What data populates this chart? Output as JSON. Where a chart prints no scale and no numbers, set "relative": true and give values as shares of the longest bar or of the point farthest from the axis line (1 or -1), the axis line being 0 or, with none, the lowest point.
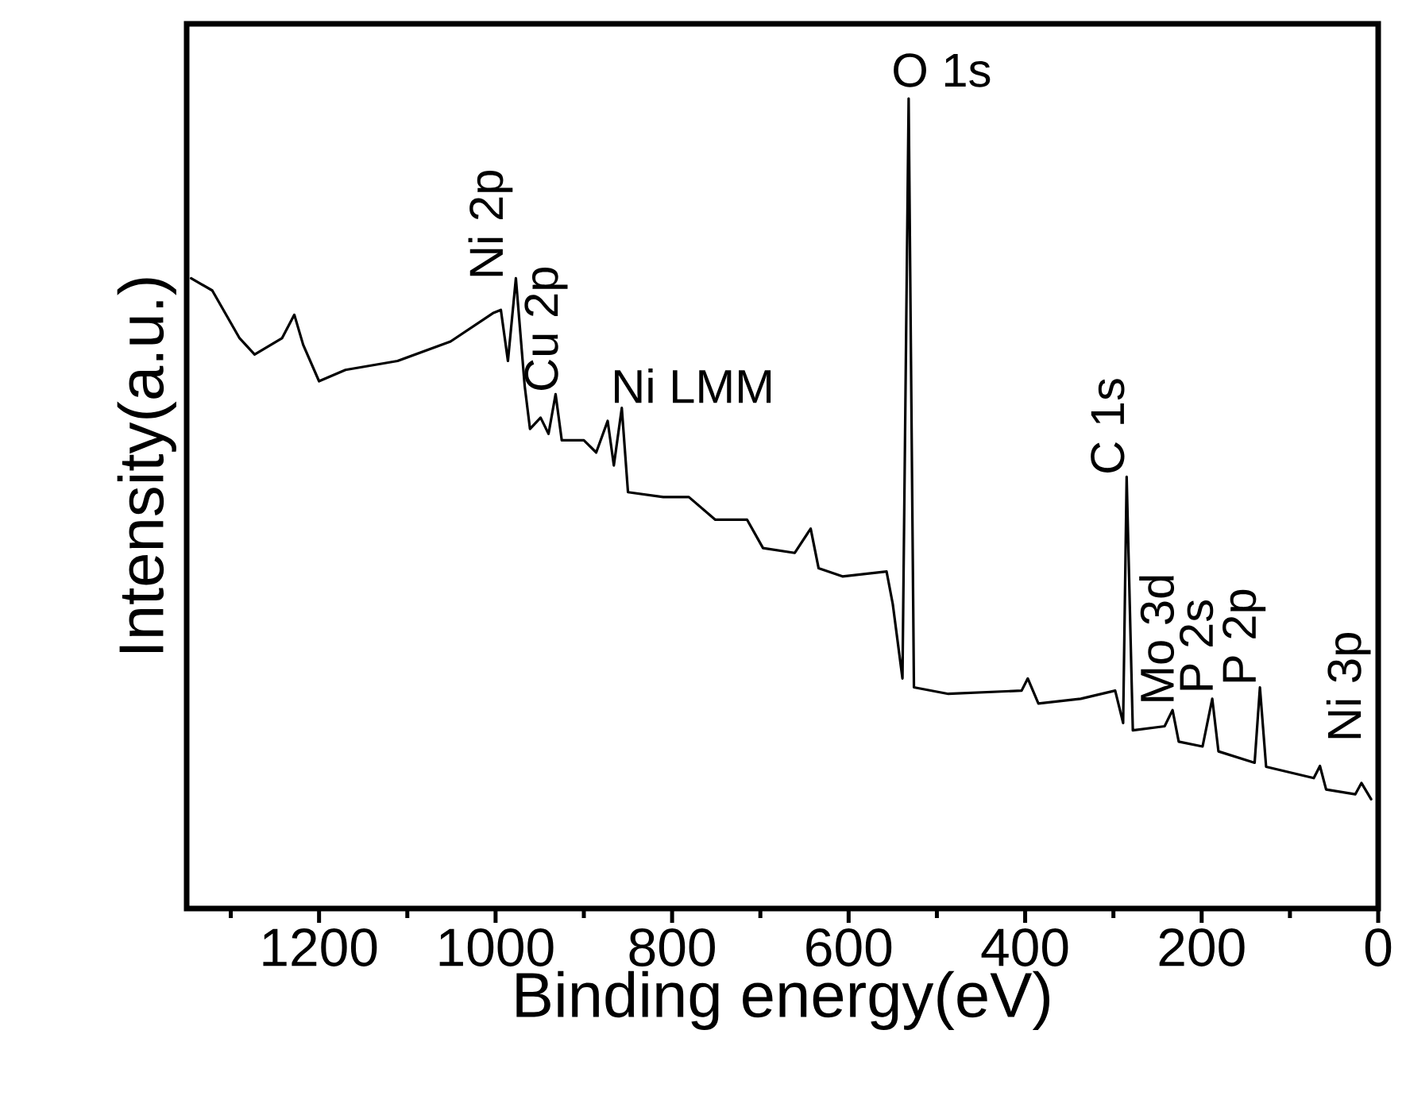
{
  "chart_data": {
    "type": "line",
    "relative": true,
    "xlabel": "Binding energy(eV)",
    "ylabel": "Intensity(a.u.)",
    "xlim": [
      1350,
      0
    ],
    "xticks": [
      {
        "value": 1300,
        "label": null
      },
      1200,
      {
        "value": 1100,
        "label": null
      },
      1000,
      {
        "value": 900,
        "label": null
      },
      800,
      {
        "value": 700,
        "label": null
      },
      600,
      {
        "value": 500,
        "label": null
      },
      400,
      {
        "value": 300,
        "label": null
      },
      200,
      {
        "value": 100,
        "label": null
      },
      0
    ],
    "x": [
      1345,
      1321,
      1290,
      1273,
      1242,
      1228,
      1218,
      1200,
      1170,
      1111,
      1051,
      1003,
      994,
      986,
      977,
      967,
      961,
      949,
      940,
      932,
      925,
      900,
      886,
      873,
      866,
      857,
      850,
      810,
      781,
      751,
      715,
      697,
      661,
      643,
      634,
      607,
      557,
      550,
      539,
      532,
      526,
      487,
      404,
      397,
      385,
      337,
      298,
      289,
      285,
      278,
      242,
      233,
      226,
      199,
      188,
      181,
      140,
      134,
      127,
      73,
      66,
      59,
      26,
      19,
      8
    ],
    "series": [
      {
        "color": "#000000",
        "values": [
          0.778,
          0.763,
          0.704,
          0.684,
          0.704,
          0.733,
          0.696,
          0.651,
          0.665,
          0.676,
          0.7,
          0.735,
          0.739,
          0.676,
          0.778,
          0.645,
          0.592,
          0.606,
          0.586,
          0.635,
          0.578,
          0.578,
          0.563,
          0.602,
          0.547,
          0.618,
          0.514,
          0.508,
          0.508,
          0.48,
          0.48,
          0.445,
          0.439,
          0.469,
          0.42,
          0.41,
          0.416,
          0.376,
          0.284,
          1.0,
          0.273,
          0.265,
          0.269,
          0.284,
          0.253,
          0.259,
          0.269,
          0.229,
          0.533,
          0.22,
          0.225,
          0.245,
          0.206,
          0.2,
          0.259,
          0.194,
          0.18,
          0.273,
          0.175,
          0.161,
          0.176,
          0.147,
          0.141,
          0.155,
          0.135
        ]
      }
    ],
    "annotations": [
      {
        "text": "Ni 2p",
        "x": 977,
        "y": 0.778
      },
      {
        "text": "Cu 2p",
        "x": 932,
        "y": 0.635
      },
      {
        "text": "Ni LMM",
        "x": 857,
        "y": 0.618
      },
      {
        "text": "O 1s",
        "x": 532,
        "y": 1.0
      },
      {
        "text": "C 1s",
        "x": 285,
        "y": 0.533
      },
      {
        "text": "Mo 3d",
        "x": 233,
        "y": 0.245
      },
      {
        "text": "P 2s",
        "x": 188,
        "y": 0.259
      },
      {
        "text": "P 2p",
        "x": 134,
        "y": 0.273
      },
      {
        "text": "Ni 3p",
        "x": 66,
        "y": 0.176
      }
    ]
  }
}
